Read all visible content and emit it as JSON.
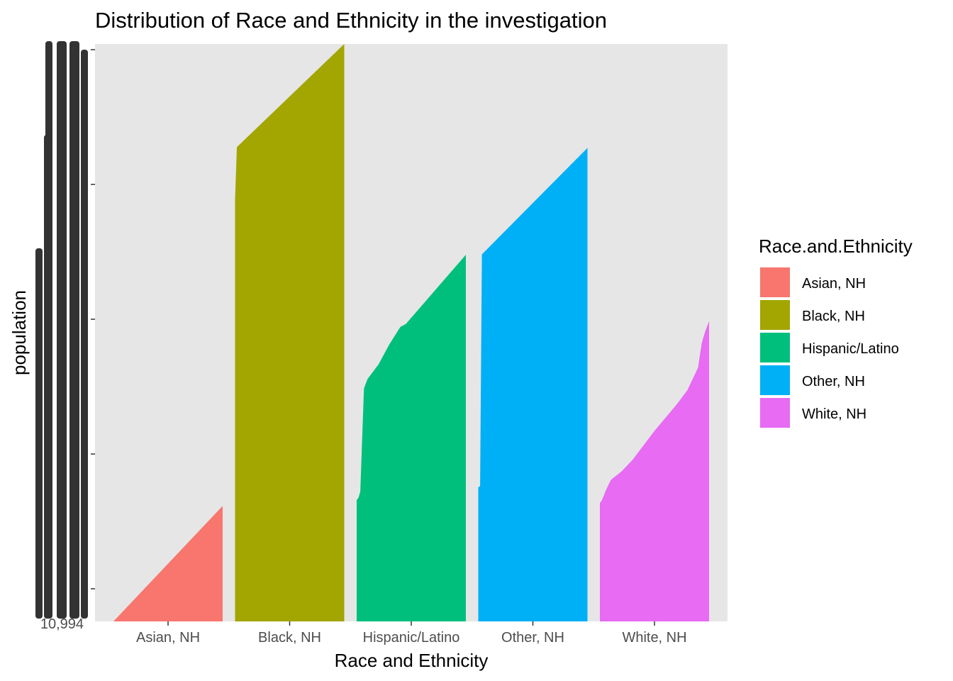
{
  "chart_data": {
    "type": "bar",
    "title": "Distribution of Race and Ethnicity in the investigation",
    "xlabel": "Race and Ethnicity",
    "ylabel": "population",
    "categories": [
      "Asian, NH",
      "Black, NH",
      "Hispanic/Latino",
      "Other, NH",
      "White, NH"
    ],
    "note_values": "Each category is drawn as many thin stacked bars ordered by rank; the y axis is discrete (overlapping, unreadable tick labels). Values below are the top envelope of each category as a share of the y range.",
    "envelope": [
      {
        "name": "Asian, NH",
        "points": [
          [
            0,
            0.0
          ],
          [
            1,
            0.2
          ]
        ]
      },
      {
        "name": "Black, NH",
        "points": [
          [
            0,
            0.73
          ],
          [
            0.01,
            0.82
          ],
          [
            0.02,
            0.822
          ],
          [
            1,
            1.0
          ]
        ]
      },
      {
        "name": "Hispanic/Latino",
        "points": [
          [
            0,
            0.21
          ],
          [
            0.02,
            0.215
          ],
          [
            0.04,
            0.23
          ],
          [
            0.06,
            0.4
          ],
          [
            0.1,
            0.42
          ],
          [
            0.2,
            0.445
          ],
          [
            0.3,
            0.48
          ],
          [
            0.4,
            0.51
          ],
          [
            0.45,
            0.515
          ],
          [
            1,
            0.635
          ]
        ]
      },
      {
        "name": "Other, NH",
        "points": [
          [
            0,
            0.232
          ],
          [
            0.02,
            0.235
          ],
          [
            0.03,
            0.635
          ],
          [
            1,
            0.82
          ]
        ]
      },
      {
        "name": "White, NH",
        "points": [
          [
            0,
            0.205
          ],
          [
            0.02,
            0.21
          ],
          [
            0.05,
            0.225
          ],
          [
            0.1,
            0.245
          ],
          [
            0.2,
            0.26
          ],
          [
            0.3,
            0.28
          ],
          [
            0.5,
            0.33
          ],
          [
            0.7,
            0.375
          ],
          [
            0.8,
            0.4
          ],
          [
            0.9,
            0.44
          ],
          [
            0.93,
            0.48
          ],
          [
            0.96,
            0.5
          ],
          [
            1,
            0.52
          ]
        ]
      }
    ],
    "colors": [
      "#F8766D",
      "#A3A500",
      "#00BF7D",
      "#00B0F6",
      "#E76BF3"
    ],
    "grid": false,
    "legend": {
      "title": "Race.and.Ethnicity",
      "placement": "right",
      "entries": [
        "Asian, NH",
        "Black, NH",
        "Hispanic/Latino",
        "Other, NH",
        "White, NH"
      ]
    },
    "ytick_labels_visible": [
      "10,994"
    ]
  }
}
